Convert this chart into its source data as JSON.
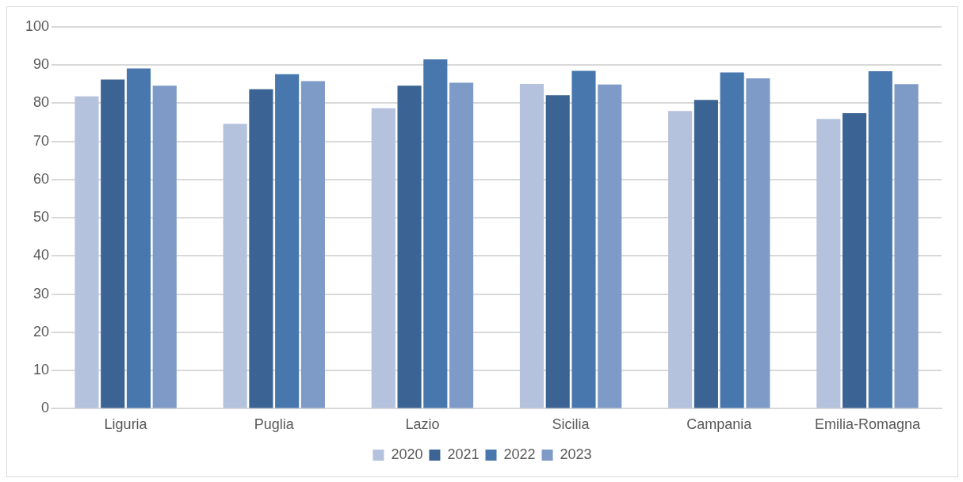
{
  "chart_data": {
    "type": "bar",
    "categories": [
      "Liguria",
      "Puglia",
      "Lazio",
      "Sicilia",
      "Campania",
      "Emilia-Romagna"
    ],
    "series": [
      {
        "name": "2020",
        "color": "#b4c2de",
        "values": [
          81.8,
          74.6,
          78.7,
          85.1,
          78.0,
          75.9
        ]
      },
      {
        "name": "2021",
        "color": "#3b6393",
        "values": [
          86.2,
          83.7,
          84.6,
          82.1,
          80.9,
          77.4
        ]
      },
      {
        "name": "2022",
        "color": "#4877ae",
        "values": [
          89.1,
          87.6,
          91.5,
          88.5,
          88.1,
          88.4
        ]
      },
      {
        "name": "2023",
        "color": "#7e9bc7",
        "values": [
          84.6,
          85.8,
          85.4,
          84.9,
          86.5,
          85.0
        ]
      }
    ],
    "ylim": [
      0,
      100
    ],
    "yticks": [
      0,
      10,
      20,
      30,
      40,
      50,
      60,
      70,
      80,
      90,
      100
    ],
    "grid": "y",
    "legend": "bottom"
  }
}
